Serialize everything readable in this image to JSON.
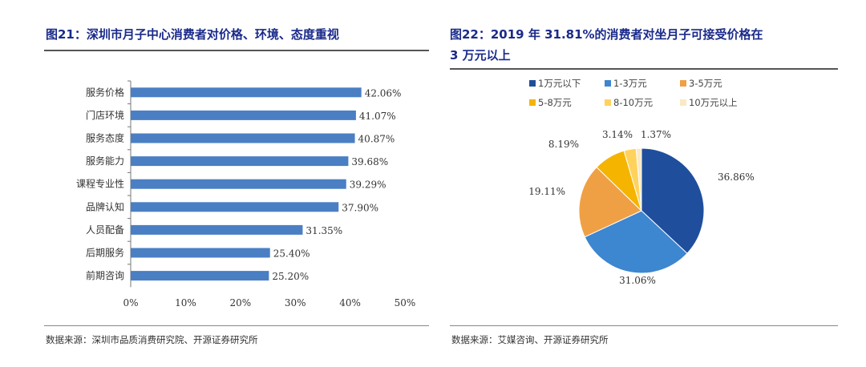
{
  "left": {
    "title": "图21：深圳市月子中心消费者对价格、环境、态度重视",
    "source": "数据来源：深圳市品质消费研究院、开源证券研究所"
  },
  "right": {
    "title_line1": "图22：2019 年 31.81%的消费者对坐月子可接受价格在",
    "title_line2": "3 万元以上",
    "source": "数据来源：艾媒咨询、开源证券研究所"
  },
  "chart_data": [
    {
      "type": "bar",
      "orientation": "horizontal",
      "categories": [
        "服务价格",
        "门店环境",
        "服务态度",
        "服务能力",
        "课程专业性",
        "品牌认知",
        "人员配备",
        "后期服务",
        "前期咨询"
      ],
      "values": [
        42.06,
        41.07,
        40.87,
        39.68,
        39.29,
        37.9,
        31.35,
        25.4,
        25.2
      ],
      "value_labels": [
        "42.06%",
        "41.07%",
        "40.87%",
        "39.68%",
        "39.29%",
        "37.90%",
        "31.35%",
        "25.40%",
        "25.20%"
      ],
      "xlim": [
        0,
        50
      ],
      "xticks": [
        "0%",
        "10%",
        "20%",
        "30%",
        "40%",
        "50%"
      ],
      "color": "#4a7fc4",
      "grid": false
    },
    {
      "type": "pie",
      "labels": [
        "1万元以下",
        "1-3万元",
        "3-5万元",
        "5-8万元",
        "8-10万元",
        "10万元以上"
      ],
      "values": [
        36.86,
        31.06,
        19.11,
        8.19,
        3.14,
        1.37
      ],
      "value_labels": [
        "36.86%",
        "31.06%",
        "19.11%",
        "8.19%",
        "3.14%",
        "1.37%"
      ],
      "colors": [
        "#1f4f9c",
        "#3d86d0",
        "#f0a044",
        "#f4b400",
        "#ffd25e",
        "#fbe9c4"
      ],
      "legend": "top"
    }
  ]
}
